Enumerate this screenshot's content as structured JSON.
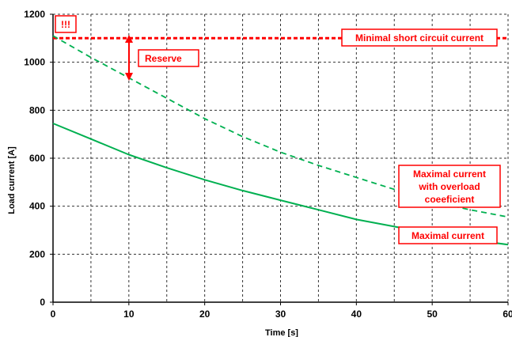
{
  "chart_data": {
    "type": "line",
    "xlabel": "Time [s]",
    "ylabel": "Load current [A]",
    "xlim": [
      0,
      60
    ],
    "ylim": [
      0,
      1200
    ],
    "x_ticks": [
      0,
      10,
      20,
      30,
      40,
      50,
      60
    ],
    "y_ticks": [
      0,
      200,
      400,
      600,
      800,
      1000,
      1200
    ],
    "x_grid": [
      0,
      5,
      10,
      15,
      20,
      25,
      30,
      35,
      40,
      45,
      50,
      55,
      60
    ],
    "grid": true,
    "series": [
      {
        "name": "Minimal short circuit current",
        "color": "#ff0000",
        "style": "dotted",
        "x": [
          0,
          60
        ],
        "y": [
          1100,
          1100
        ]
      },
      {
        "name": "Maximal current with overload coeeficient",
        "color": "#00b050",
        "style": "dashed",
        "x": [
          0,
          5,
          10,
          15,
          20,
          25,
          30,
          35,
          40,
          45,
          50,
          55,
          60
        ],
        "y": [
          1110,
          1020,
          935,
          850,
          765,
          690,
          625,
          570,
          520,
          470,
          420,
          385,
          355
        ]
      },
      {
        "name": "Maximal current",
        "color": "#00b050",
        "style": "solid",
        "x": [
          0,
          5,
          10,
          15,
          20,
          25,
          30,
          35,
          40,
          45,
          50,
          55,
          60
        ],
        "y": [
          745,
          680,
          615,
          560,
          510,
          465,
          425,
          385,
          345,
          315,
          285,
          260,
          240
        ]
      }
    ],
    "annotations": {
      "warning": "!!!",
      "reserve": "Reserve",
      "min_short_circuit": "Minimal short circuit current",
      "max_overload": [
        "Maximal current",
        "with overload",
        "coeeficient"
      ],
      "max_current": "Maximal current"
    },
    "colors": {
      "red": "#ff0000",
      "green": "#00b050",
      "grid": "#333333"
    }
  }
}
